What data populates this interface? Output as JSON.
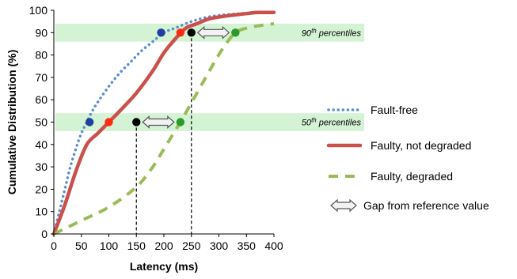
{
  "chart_data": {
    "type": "line",
    "xlabel": "Latency (ms)",
    "ylabel": "Cumulative Distribution (%)",
    "xlim": [
      0,
      400
    ],
    "ylim": [
      0,
      100
    ],
    "xticks": [
      "0",
      "50",
      "100",
      "150",
      "200",
      "250",
      "300",
      "350",
      "400"
    ],
    "yticks": [
      "0",
      "10",
      "20",
      "30",
      "40",
      "50",
      "60",
      "70",
      "80",
      "90",
      "100"
    ],
    "grid": false,
    "legend_position": "right",
    "series": [
      {
        "name": "Fault-free",
        "style": "dotted",
        "color": "#5b8fd0",
        "x": [
          0,
          10,
          20,
          30,
          40,
          50,
          60,
          70,
          80,
          100,
          120,
          140,
          160,
          180,
          200,
          220,
          250,
          280,
          310,
          340,
          370,
          400
        ],
        "y": [
          0,
          10,
          20,
          30,
          38,
          45,
          50,
          55,
          59,
          66,
          72,
          77,
          82,
          86,
          90,
          92,
          95,
          97,
          98,
          98.5,
          99,
          99
        ]
      },
      {
        "name": "Faulty, not degraded",
        "style": "solid",
        "color": "#c9504b",
        "x": [
          0,
          20,
          40,
          60,
          80,
          100,
          120,
          150,
          180,
          200,
          220,
          240,
          260,
          280,
          300,
          330,
          350,
          370,
          400
        ],
        "y": [
          0,
          13,
          28,
          40,
          45,
          50,
          55,
          63,
          73,
          81,
          87,
          92,
          94,
          96,
          97,
          98,
          98.5,
          99,
          99
        ]
      },
      {
        "name": "Faulty, degraded",
        "style": "dashed",
        "color": "#9bbb59",
        "x": [
          0,
          50,
          100,
          150,
          180,
          200,
          230,
          260,
          290,
          310,
          330,
          350,
          370,
          400
        ],
        "y": [
          0,
          6,
          12,
          21,
          30,
          38,
          50,
          63,
          76,
          84,
          90,
          92,
          93,
          94
        ]
      }
    ],
    "bands": [
      {
        "label_main": "90",
        "label_sup": "th",
        "label_rest": " percentiles",
        "y_low": 86,
        "y_high": 94
      },
      {
        "label_main": "50",
        "label_sup": "th",
        "label_rest": " percentiles",
        "y_low": 46,
        "y_high": 54
      }
    ],
    "markers": [
      {
        "x": 195,
        "y": 90,
        "color": "#1f3f9e"
      },
      {
        "x": 230,
        "y": 90,
        "color": "#ff2a12"
      },
      {
        "x": 250,
        "y": 90,
        "color": "#000000"
      },
      {
        "x": 330,
        "y": 90,
        "color": "#2a9a2a"
      },
      {
        "x": 65,
        "y": 50,
        "color": "#1f3f9e"
      },
      {
        "x": 100,
        "y": 50,
        "color": "#ff2a12"
      },
      {
        "x": 150,
        "y": 50,
        "color": "#000000"
      },
      {
        "x": 230,
        "y": 50,
        "color": "#2a9a2a"
      }
    ],
    "reference_lines": [
      {
        "x": 150,
        "y_top": 50
      },
      {
        "x": 250,
        "y_top": 90
      }
    ],
    "gap_arrows": [
      {
        "x1": 150,
        "x2": 230,
        "y": 50
      },
      {
        "x1": 250,
        "x2": 330,
        "y": 90
      }
    ],
    "legend": [
      {
        "label": "Fault-free",
        "kind": "dotted",
        "color": "#5b8fd0"
      },
      {
        "label": "Faulty, not degraded",
        "kind": "solid",
        "color": "#c9504b"
      },
      {
        "label": "Faulty, degraded",
        "kind": "dashed",
        "color": "#9bbb59"
      },
      {
        "label": "Gap from reference value",
        "kind": "arrow",
        "color": "#555555"
      }
    ]
  }
}
